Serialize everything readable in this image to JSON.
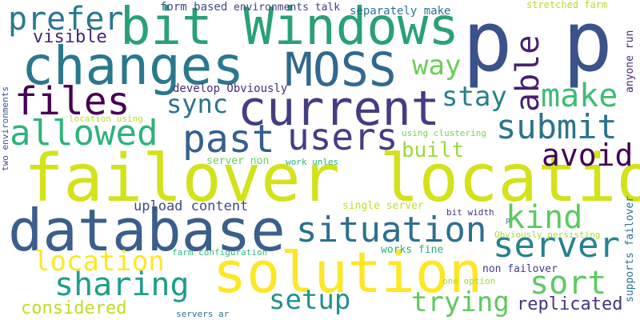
{
  "words": [
    {
      "text": "failover location",
      "color": "#d2e21b"
    },
    {
      "text": "p p",
      "color": "#3b528b"
    },
    {
      "text": "database",
      "color": "#3b5e8c"
    },
    {
      "text": "solution",
      "color": "#fde725"
    },
    {
      "text": "changes",
      "color": "#2a788e"
    },
    {
      "text": "bit Windows",
      "color": "#2aa07a"
    },
    {
      "text": "current",
      "color": "#433d84"
    },
    {
      "text": "MOSS",
      "color": "#31688e"
    },
    {
      "text": "files",
      "color": "#440154"
    },
    {
      "text": "past",
      "color": "#355f8d"
    },
    {
      "text": "users",
      "color": "#423e85"
    },
    {
      "text": "allowed",
      "color": "#2eb37c"
    },
    {
      "text": "situation",
      "color": "#2d6f8e"
    },
    {
      "text": "server",
      "color": "#26828e"
    },
    {
      "text": "submit",
      "color": "#2c728e"
    },
    {
      "text": "prefer",
      "color": "#2a788e"
    },
    {
      "text": "sharing",
      "color": "#1f9e89"
    },
    {
      "text": "make",
      "color": "#3dbc74"
    },
    {
      "text": "able",
      "color": "#481f70"
    },
    {
      "text": "sort",
      "color": "#5ec962"
    },
    {
      "text": "kind",
      "color": "#5dc863"
    },
    {
      "text": "avoid",
      "color": "#440154"
    },
    {
      "text": "location",
      "color": "#fde725"
    },
    {
      "text": "trying",
      "color": "#5ec962"
    },
    {
      "text": "setup",
      "color": "#21918c"
    },
    {
      "text": "stay",
      "color": "#277f8e"
    },
    {
      "text": "sync",
      "color": "#2c728e"
    },
    {
      "text": "way",
      "color": "#6ccd5a"
    },
    {
      "text": "built",
      "color": "#9bd93c"
    },
    {
      "text": "considered",
      "color": "#bddf26"
    },
    {
      "text": "replicated",
      "color": "#453581"
    },
    {
      "text": "visible",
      "color": "#482475"
    },
    {
      "text": "upload content",
      "color": "#3e4989"
    },
    {
      "text": "form based",
      "color": "#3e4a89"
    },
    {
      "text": "environments talk",
      "color": "#423f85"
    },
    {
      "text": "separately make",
      "color": "#2c738e"
    },
    {
      "text": "stretched farm",
      "color": "#b5de2b"
    },
    {
      "text": "develop Obviously",
      "color": "#472c7a"
    },
    {
      "text": "location using",
      "color": "#b8de29"
    },
    {
      "text": "using clustering",
      "color": "#7ad151"
    },
    {
      "text": "server non",
      "color": "#6ccd5a"
    },
    {
      "text": "work unles",
      "color": "#2db27d"
    },
    {
      "text": "single server",
      "color": "#c2df23"
    },
    {
      "text": "bit width",
      "color": "#46327e"
    },
    {
      "text": "Obviously persisting",
      "color": "#a8db34"
    },
    {
      "text": "works fine",
      "color": "#2ab07f"
    },
    {
      "text": "farm configuration",
      "color": "#35b779"
    },
    {
      "text": "non failover",
      "color": "#433e85"
    },
    {
      "text": "one option",
      "color": "#a2da37"
    },
    {
      "text": "servers ar",
      "color": "#2d708e"
    },
    {
      "text": "two environments",
      "color": "#3b528b"
    },
    {
      "text": "anyone run",
      "color": "#482878"
    },
    {
      "text": "supports failover",
      "color": "#2c728e"
    },
    {
      "text": "p",
      "color": "#2d708e"
    }
  ]
}
